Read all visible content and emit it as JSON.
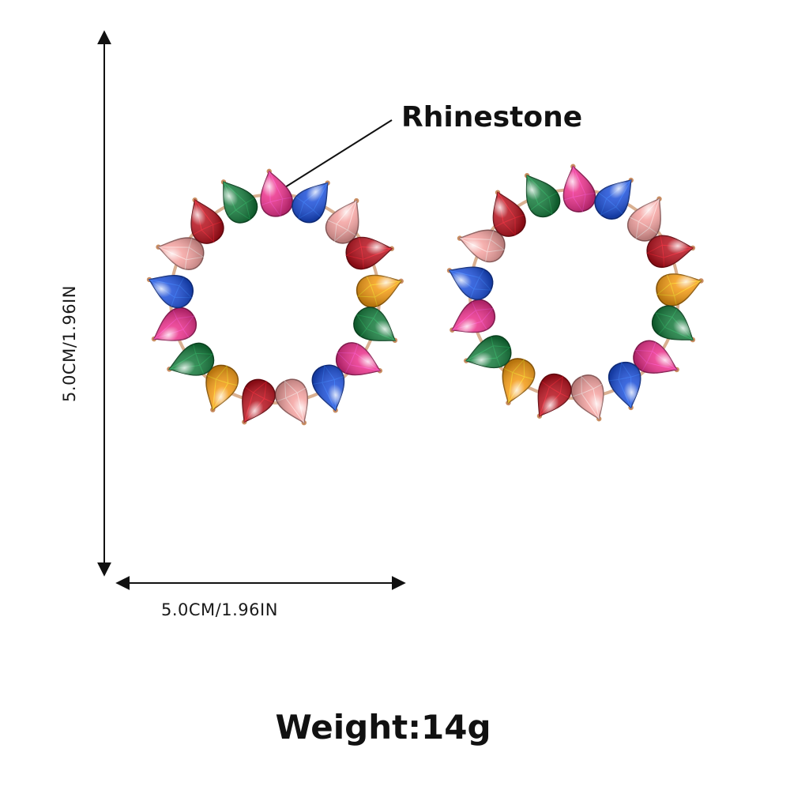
{
  "labels": {
    "callout": "Rhinestone",
    "width_dimension": "5.0CM/1.96IN",
    "height_dimension": "5.0CM/1.96IN",
    "weight": "Weight:14g"
  },
  "colors": {
    "background": "#ffffff",
    "line": "#111111",
    "setting_metal": "#c98e63",
    "stone_palette": [
      "#f39a12",
      "#157a3c",
      "#ea2f8a",
      "#1c4fd8",
      "#f4a2a0",
      "#b5101c"
    ]
  },
  "illustration": {
    "subject": "pair-of-round-hoop-stud-earrings",
    "stones_per_earring": 17,
    "stone_cut": "teardrop",
    "stone_colors_in_order": [
      "#ea2f8a",
      "#1c4fd8",
      "#f4a2a0",
      "#b5101c",
      "#f39a12",
      "#157a3c",
      "#ea2f8a",
      "#1c4fd8",
      "#f4a2a0",
      "#b5101c",
      "#f39a12",
      "#157a3c",
      "#ea2f8a",
      "#1c4fd8",
      "#f4a2a0",
      "#b5101c",
      "#157a3c"
    ]
  }
}
